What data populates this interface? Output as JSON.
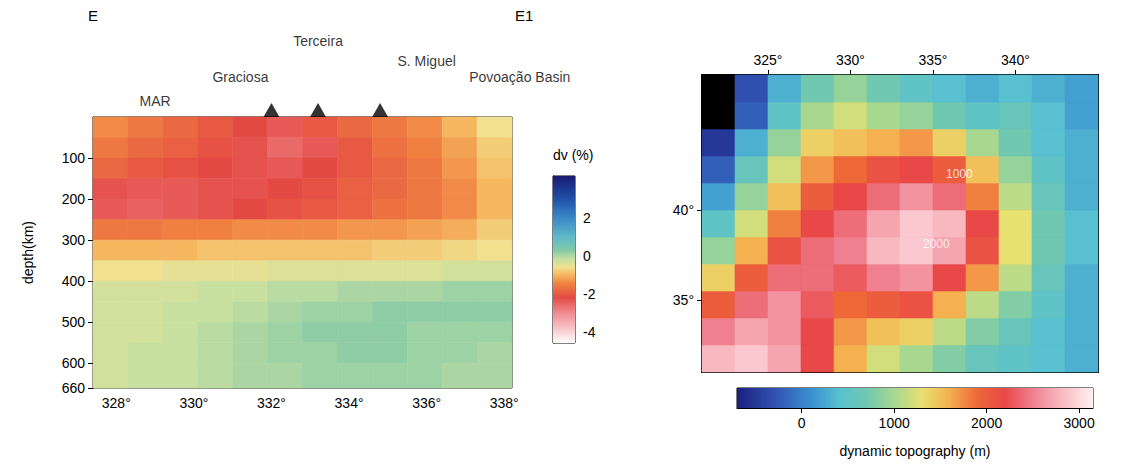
{
  "chart_data": [
    {
      "type": "heatmap",
      "panel_label": "E",
      "y_label": "depth(km)",
      "xlim": [
        327.4,
        338.2
      ],
      "xticks": [
        {
          "value": 328,
          "label": "328°"
        },
        {
          "value": 330,
          "label": "330°"
        },
        {
          "value": 332,
          "label": "332°"
        },
        {
          "value": 334,
          "label": "334°"
        },
        {
          "value": 336,
          "label": "336°"
        },
        {
          "value": 338,
          "label": "338°"
        }
      ],
      "ylim": [
        0,
        660
      ],
      "yticks": [
        100,
        200,
        300,
        400,
        500,
        600,
        660
      ],
      "x_edges": [
        327.4,
        328.3,
        329.2,
        330.1,
        331.0,
        331.9,
        332.8,
        333.7,
        334.6,
        335.5,
        336.4,
        337.3,
        338.2
      ],
      "y_edges": [
        0,
        50,
        100,
        150,
        200,
        250,
        300,
        350,
        400,
        450,
        500,
        550,
        600,
        660
      ],
      "cells": [
        [
          -1.4,
          -1.6,
          -1.8,
          -2.0,
          -2.2,
          -2.4,
          -2.0,
          -1.8,
          -1.6,
          -1.4,
          -1.0,
          -0.6
        ],
        [
          -1.6,
          -1.8,
          -1.9,
          -2.1,
          -2.3,
          -2.6,
          -2.4,
          -2.0,
          -1.7,
          -1.5,
          -1.2,
          -0.8
        ],
        [
          -1.8,
          -2.0,
          -2.1,
          -2.2,
          -2.3,
          -2.4,
          -2.2,
          -2.0,
          -1.8,
          -1.6,
          -1.3,
          -0.9
        ],
        [
          -2.3,
          -2.4,
          -2.4,
          -2.3,
          -2.3,
          -2.2,
          -2.1,
          -1.9,
          -1.8,
          -1.6,
          -1.4,
          -1.0
        ],
        [
          -2.4,
          -2.5,
          -2.4,
          -2.3,
          -2.2,
          -2.1,
          -2.0,
          -1.9,
          -1.7,
          -1.6,
          -1.4,
          -1.0
        ],
        [
          -1.6,
          -1.6,
          -1.5,
          -1.5,
          -1.4,
          -1.4,
          -1.4,
          -1.3,
          -1.3,
          -1.2,
          -1.1,
          -0.8
        ],
        [
          -1.0,
          -1.0,
          -1.0,
          -0.9,
          -0.9,
          -0.9,
          -0.9,
          -0.9,
          -0.8,
          -0.8,
          -0.7,
          -0.6
        ],
        [
          -0.6,
          -0.6,
          -0.5,
          -0.5,
          -0.5,
          -0.4,
          -0.4,
          -0.4,
          -0.4,
          -0.4,
          -0.3,
          -0.3
        ],
        [
          -0.3,
          -0.3,
          -0.3,
          -0.2,
          -0.2,
          -0.1,
          -0.1,
          0.0,
          0.0,
          0.0,
          0.1,
          0.1
        ],
        [
          -0.3,
          -0.3,
          -0.2,
          -0.2,
          -0.1,
          0.0,
          0.1,
          0.1,
          0.2,
          0.2,
          0.2,
          0.2
        ],
        [
          -0.3,
          -0.3,
          -0.2,
          -0.1,
          0.0,
          0.1,
          0.2,
          0.2,
          0.2,
          0.1,
          0.1,
          0.1
        ],
        [
          -0.3,
          -0.2,
          -0.2,
          -0.1,
          0.0,
          0.1,
          0.1,
          0.2,
          0.2,
          0.1,
          0.1,
          0.0
        ],
        [
          -0.3,
          -0.2,
          -0.2,
          -0.1,
          0.0,
          0.0,
          0.1,
          0.1,
          0.1,
          0.1,
          0.0,
          0.0
        ]
      ],
      "colorbar": {
        "title": "dv (%)",
        "range": [
          -4.6,
          4.2
        ],
        "ticks": [
          -4,
          -2,
          0,
          2
        ]
      },
      "annotations": [
        {
          "text": "MAR",
          "x": 329.0
        },
        {
          "text": "Graciosa",
          "x": 331.2
        },
        {
          "text": "Terceira",
          "x": 333.2
        },
        {
          "text": "S. Miguel",
          "x": 336.0
        },
        {
          "text": "Povoação Basin",
          "x": 338.4
        }
      ],
      "volcanoes": [
        332.0,
        333.2,
        334.8
      ]
    },
    {
      "type": "heatmap",
      "panel_label": "E1",
      "xlim": [
        321,
        345
      ],
      "xticks": [
        {
          "value": 325,
          "label": "325°"
        },
        {
          "value": 330,
          "label": "330°"
        },
        {
          "value": 335,
          "label": "335°"
        },
        {
          "value": 340,
          "label": "340°"
        }
      ],
      "ylim": [
        31,
        47.5
      ],
      "yticks": [
        {
          "value": 35,
          "label": "35°"
        },
        {
          "value": 40,
          "label": "40°"
        }
      ],
      "x_edges": [
        321,
        323,
        325,
        327,
        329,
        331,
        333,
        335,
        337,
        339,
        341,
        343,
        345
      ],
      "y_edges": [
        31,
        32.5,
        34,
        35.5,
        37,
        38.5,
        40,
        41.5,
        43,
        44.5,
        46,
        47.5
      ],
      "cells": [
        [
          2800,
          2900,
          2700,
          2200,
          1600,
          1200,
          1000,
          800,
          600,
          500,
          400,
          300
        ],
        [
          2500,
          2700,
          2600,
          2200,
          1700,
          1500,
          1400,
          1100,
          800,
          600,
          400,
          300
        ],
        [
          2000,
          2400,
          2600,
          2300,
          1900,
          2000,
          2100,
          1600,
          1100,
          800,
          500,
          300
        ],
        [
          1400,
          2000,
          2400,
          2400,
          2300,
          2500,
          2600,
          2200,
          1700,
          1100,
          600,
          300
        ],
        [
          900,
          1600,
          2100,
          2400,
          2500,
          2800,
          2900,
          2700,
          2100,
          1300,
          700,
          400
        ],
        [
          500,
          1200,
          1800,
          2200,
          2400,
          2700,
          2900,
          2800,
          2200,
          1300,
          700,
          400
        ],
        [
          200,
          900,
          1500,
          2000,
          2200,
          2400,
          2600,
          2400,
          1800,
          1100,
          600,
          300
        ],
        [
          -200,
          600,
          1200,
          1700,
          1900,
          2100,
          2200,
          2000,
          1500,
          900,
          500,
          300
        ],
        [
          -500,
          300,
          900,
          1400,
          1500,
          1600,
          1700,
          1400,
          1000,
          700,
          400,
          300
        ],
        [
          -800,
          -200,
          500,
          1000,
          1200,
          1000,
          900,
          700,
          500,
          600,
          400,
          200
        ],
        [
          -800,
          -300,
          300,
          700,
          900,
          700,
          500,
          400,
          300,
          400,
          300,
          200
        ]
      ],
      "colorbar": {
        "title": "dynamic topography (m)",
        "range": [
          -700,
          3150
        ],
        "ticks": [
          0,
          1000,
          2000,
          3000
        ]
      },
      "contour_labels": [
        {
          "text": "1000",
          "x": 336.6,
          "y": 42.0
        },
        {
          "text": "2000",
          "x": 335.2,
          "y": 38.1
        }
      ]
    }
  ]
}
